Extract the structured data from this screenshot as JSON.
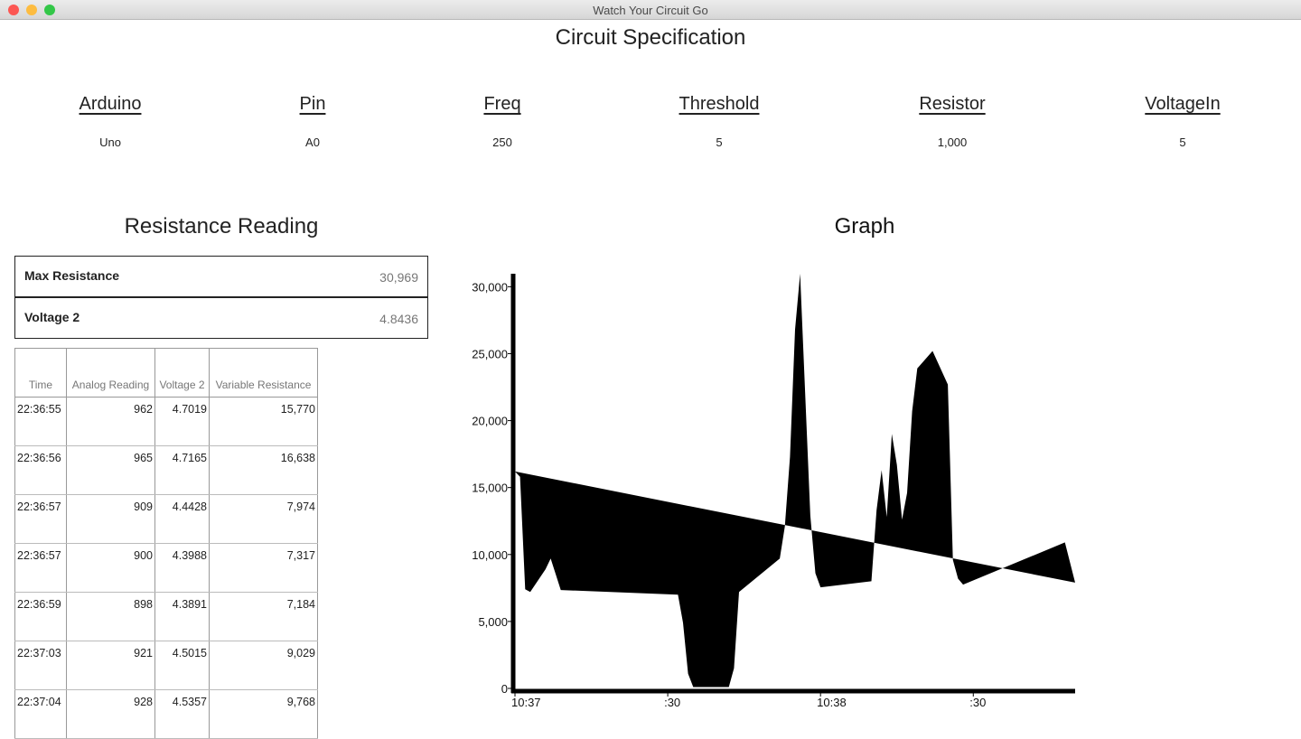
{
  "window": {
    "title": "Watch Your Circuit Go"
  },
  "spec": {
    "title": "Circuit Specification",
    "columns": [
      {
        "label": "Arduino",
        "value": "Uno"
      },
      {
        "label": "Pin",
        "value": "A0"
      },
      {
        "label": "Freq",
        "value": "250"
      },
      {
        "label": "Threshold",
        "value": "5"
      },
      {
        "label": "Resistor",
        "value": "1,000"
      },
      {
        "label": "VoltageIn",
        "value": "5"
      }
    ]
  },
  "reading": {
    "title": "Resistance Reading",
    "summary": [
      {
        "label": "Max Resistance",
        "value": "30,969"
      },
      {
        "label": "Voltage 2",
        "value": "4.8436"
      }
    ],
    "table": {
      "headers": [
        "Time",
        "Analog Reading",
        "Voltage 2",
        "Variable Resistance"
      ],
      "rows": [
        [
          "22:36:55",
          "962",
          "4.7019",
          "15,770"
        ],
        [
          "22:36:56",
          "965",
          "4.7165",
          "16,638"
        ],
        [
          "22:36:57",
          "909",
          "4.4428",
          "7,974"
        ],
        [
          "22:36:57",
          "900",
          "4.3988",
          "7,317"
        ],
        [
          "22:36:59",
          "898",
          "4.3891",
          "7,184"
        ],
        [
          "22:37:03",
          "921",
          "4.5015",
          "9,029"
        ],
        [
          "22:37:04",
          "928",
          "4.5357",
          "9,768"
        ]
      ]
    }
  },
  "chart_data": {
    "type": "area",
    "title": "Graph",
    "color": "#000000",
    "x": [
      "10:37:00",
      "10:37:01",
      "10:37:02",
      "10:37:03",
      "10:37:06",
      "10:37:07",
      "10:37:09",
      "10:37:32",
      "10:37:33",
      "10:37:34",
      "10:37:35",
      "10:37:42",
      "10:37:43",
      "10:37:44",
      "10:37:52",
      "10:37:53",
      "10:37:54",
      "10:37:55",
      "10:37:56",
      "10:37:58",
      "10:37:59",
      "10:38:00",
      "10:38:10",
      "10:38:11",
      "10:38:12",
      "10:38:13",
      "10:38:14",
      "10:38:15",
      "10:38:16",
      "10:38:17",
      "10:38:18",
      "10:38:19",
      "10:38:22",
      "10:38:25",
      "10:38:26",
      "10:38:27",
      "10:38:28",
      "10:38:48",
      "10:38:50"
    ],
    "values": [
      16200,
      15800,
      7400,
      7200,
      8900,
      9700,
      7350,
      7000,
      4900,
      1100,
      100,
      100,
      1500,
      7200,
      9700,
      12100,
      17300,
      26800,
      30969,
      12900,
      8600,
      7550,
      8000,
      13300,
      16300,
      12800,
      19000,
      16700,
      12600,
      14600,
      20700,
      23900,
      25200,
      22700,
      9600,
      8200,
      7750,
      10900,
      7900
    ],
    "xlim": [
      "10:37:00",
      "10:38:50"
    ],
    "xticks": [
      {
        "value": "10:37:00",
        "label": "10:37"
      },
      {
        "value": "10:37:30",
        "label": ":30"
      },
      {
        "value": "10:38:00",
        "label": "10:38"
      },
      {
        "value": "10:38:30",
        "label": ":30"
      }
    ],
    "ylim": [
      0,
      30969
    ],
    "yticks": [
      0,
      {
        "value": 5000,
        "label": "5,000"
      },
      {
        "value": 10000,
        "label": "10,000"
      },
      {
        "value": 15000,
        "label": "15,000"
      },
      {
        "value": 20000,
        "label": "20,000"
      },
      {
        "value": 25000,
        "label": "25,000"
      },
      {
        "value": 30000,
        "label": "30,000"
      }
    ]
  }
}
